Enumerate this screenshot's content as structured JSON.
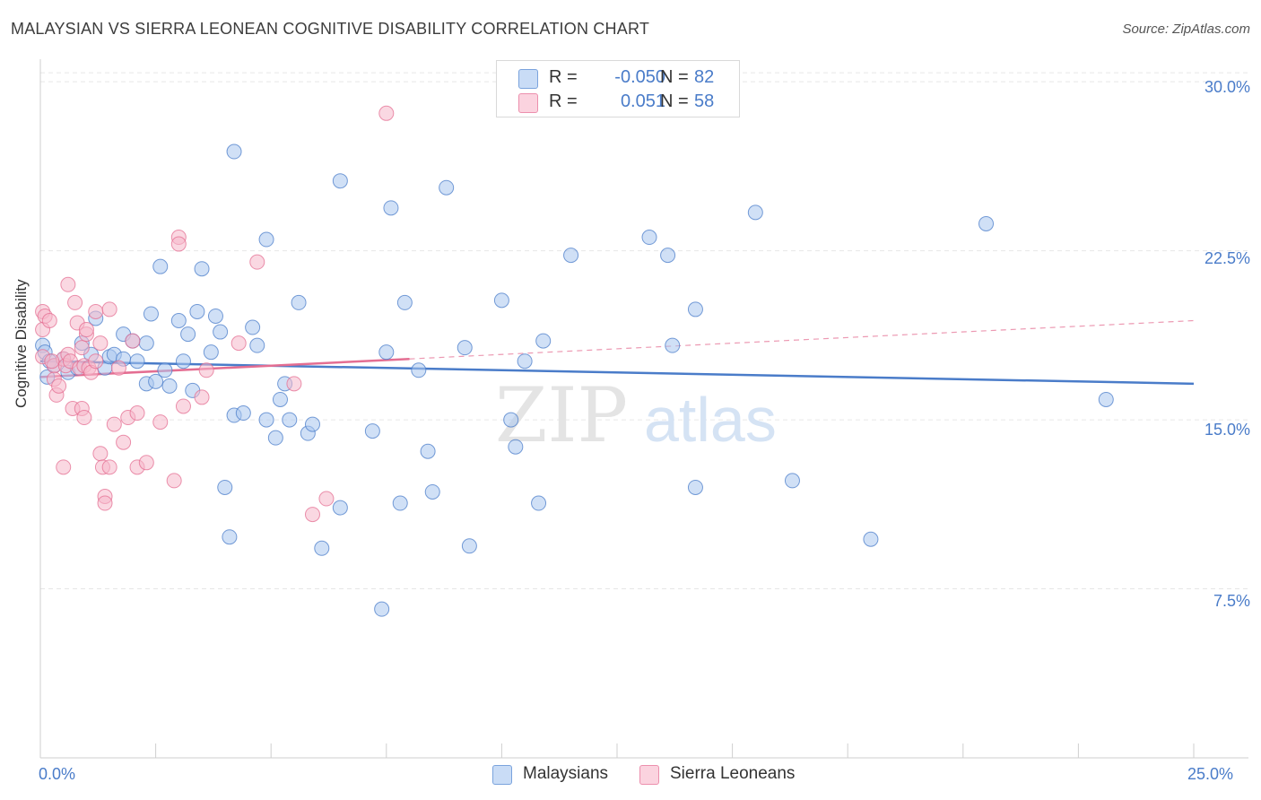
{
  "header": {
    "title": "MALAYSIAN VS SIERRA LEONEAN COGNITIVE DISABILITY CORRELATION CHART",
    "source": "Source: ZipAtlas.com"
  },
  "watermark": "ZIPatlas",
  "stats": [
    {
      "r_label": "R =",
      "r_value": "-0.050",
      "n_label": "N =",
      "n_value": "82",
      "color": "#a9c6ef"
    },
    {
      "r_label": "R =",
      "r_value": "0.051",
      "n_label": "N =",
      "n_value": "58",
      "color": "#f5b8cb"
    }
  ],
  "legend": [
    {
      "label": "Malaysians",
      "color": "#a9c6ef"
    },
    {
      "label": "Sierra Leoneans",
      "color": "#f5b8cb"
    }
  ],
  "chart_data": {
    "type": "scatter",
    "title": "MALAYSIAN VS SIERRA LEONEAN COGNITIVE DISABILITY CORRELATION CHART",
    "xlabel": "",
    "ylabel": "Cognitive Disability",
    "xlim": [
      0,
      25
    ],
    "ylim": [
      0,
      31
    ],
    "x_tick_labels": [
      "0.0%",
      "25.0%"
    ],
    "y_ticks": [
      7.5,
      15.0,
      22.5,
      30.0
    ],
    "y_tick_labels": [
      "7.5%",
      "15.0%",
      "22.5%",
      "30.0%"
    ],
    "grid": true,
    "series": [
      {
        "name": "Malaysians",
        "color": "#4a7cc9",
        "fill": "#a9c6ef",
        "trend": {
          "x0": 0,
          "y0": 17.6,
          "x1": 25,
          "y1": 16.6
        },
        "points": [
          [
            0.05,
            18.3
          ],
          [
            0.1,
            18.0
          ],
          [
            0.2,
            17.6
          ],
          [
            0.3,
            17.4
          ],
          [
            0.5,
            17.7
          ],
          [
            0.6,
            17.1
          ],
          [
            0.8,
            17.3
          ],
          [
            0.9,
            18.4
          ],
          [
            1.1,
            17.9
          ],
          [
            1.2,
            19.5
          ],
          [
            1.4,
            17.3
          ],
          [
            1.5,
            17.8
          ],
          [
            1.6,
            17.9
          ],
          [
            1.8,
            17.7
          ],
          [
            1.8,
            18.8
          ],
          [
            2.0,
            18.5
          ],
          [
            2.1,
            17.6
          ],
          [
            2.3,
            18.4
          ],
          [
            2.3,
            16.6
          ],
          [
            2.4,
            19.7
          ],
          [
            2.5,
            16.7
          ],
          [
            2.6,
            21.8
          ],
          [
            2.7,
            17.2
          ],
          [
            2.8,
            16.5
          ],
          [
            3.0,
            19.4
          ],
          [
            3.1,
            17.6
          ],
          [
            3.2,
            18.8
          ],
          [
            3.3,
            16.3
          ],
          [
            3.4,
            19.8
          ],
          [
            3.5,
            21.7
          ],
          [
            3.7,
            18.0
          ],
          [
            3.8,
            19.6
          ],
          [
            3.9,
            18.9
          ],
          [
            4.0,
            12.0
          ],
          [
            4.1,
            9.8
          ],
          [
            4.2,
            26.9
          ],
          [
            4.2,
            15.2
          ],
          [
            4.4,
            15.3
          ],
          [
            4.6,
            19.1
          ],
          [
            4.7,
            18.3
          ],
          [
            4.9,
            23.0
          ],
          [
            4.9,
            15.0
          ],
          [
            5.1,
            14.2
          ],
          [
            5.2,
            15.9
          ],
          [
            5.3,
            16.6
          ],
          [
            5.4,
            15.0
          ],
          [
            5.6,
            20.2
          ],
          [
            5.8,
            14.4
          ],
          [
            5.9,
            14.8
          ],
          [
            6.1,
            9.3
          ],
          [
            6.5,
            11.1
          ],
          [
            6.5,
            25.6
          ],
          [
            7.2,
            14.5
          ],
          [
            7.4,
            6.6
          ],
          [
            7.5,
            18.0
          ],
          [
            7.6,
            24.4
          ],
          [
            7.8,
            11.3
          ],
          [
            7.9,
            20.2
          ],
          [
            8.2,
            17.2
          ],
          [
            8.4,
            13.6
          ],
          [
            8.5,
            11.8
          ],
          [
            8.8,
            25.3
          ],
          [
            9.2,
            18.2
          ],
          [
            9.3,
            9.4
          ],
          [
            10.0,
            20.3
          ],
          [
            10.2,
            15.0
          ],
          [
            10.3,
            13.8
          ],
          [
            10.5,
            17.6
          ],
          [
            10.8,
            11.3
          ],
          [
            10.9,
            18.5
          ],
          [
            11.5,
            22.3
          ],
          [
            13.2,
            23.1
          ],
          [
            13.6,
            22.3
          ],
          [
            13.7,
            18.3
          ],
          [
            14.2,
            19.9
          ],
          [
            14.2,
            12.0
          ],
          [
            15.5,
            24.2
          ],
          [
            16.3,
            12.3
          ],
          [
            18.0,
            9.7
          ],
          [
            20.5,
            23.7
          ],
          [
            23.1,
            15.9
          ],
          [
            0.15,
            16.9
          ]
        ]
      },
      {
        "name": "Sierra Leoneans",
        "color": "#e46e92",
        "fill": "#f5b8cb",
        "trend": {
          "x0": 0,
          "y0": 16.9,
          "x1": 8,
          "y1": 17.7,
          "dashed_x1": 25,
          "dashed_y1": 19.4
        },
        "points": [
          [
            0.05,
            17.8
          ],
          [
            0.05,
            19.8
          ],
          [
            0.05,
            19.0
          ],
          [
            0.1,
            19.6
          ],
          [
            0.2,
            19.4
          ],
          [
            0.3,
            17.4
          ],
          [
            0.3,
            16.8
          ],
          [
            0.35,
            16.1
          ],
          [
            0.4,
            16.5
          ],
          [
            0.5,
            17.7
          ],
          [
            0.5,
            12.9
          ],
          [
            0.55,
            17.4
          ],
          [
            0.6,
            17.9
          ],
          [
            0.6,
            21.0
          ],
          [
            0.65,
            17.6
          ],
          [
            0.7,
            15.5
          ],
          [
            0.75,
            20.2
          ],
          [
            0.8,
            19.3
          ],
          [
            0.85,
            17.3
          ],
          [
            0.9,
            18.2
          ],
          [
            0.9,
            15.5
          ],
          [
            0.95,
            15.1
          ],
          [
            0.95,
            17.4
          ],
          [
            1.0,
            18.8
          ],
          [
            1.0,
            19.0
          ],
          [
            1.05,
            17.3
          ],
          [
            1.1,
            17.1
          ],
          [
            1.2,
            19.8
          ],
          [
            1.2,
            17.6
          ],
          [
            1.3,
            18.4
          ],
          [
            1.3,
            13.5
          ],
          [
            1.35,
            12.9
          ],
          [
            1.4,
            11.6
          ],
          [
            1.4,
            11.3
          ],
          [
            1.5,
            19.9
          ],
          [
            1.5,
            12.9
          ],
          [
            1.6,
            14.8
          ],
          [
            1.7,
            17.3
          ],
          [
            1.8,
            14.0
          ],
          [
            1.9,
            15.1
          ],
          [
            2.0,
            18.5
          ],
          [
            2.1,
            12.9
          ],
          [
            2.1,
            15.3
          ],
          [
            2.3,
            13.1
          ],
          [
            2.6,
            14.9
          ],
          [
            2.9,
            12.3
          ],
          [
            3.0,
            23.1
          ],
          [
            3.0,
            22.8
          ],
          [
            3.1,
            15.6
          ],
          [
            3.5,
            16.0
          ],
          [
            3.6,
            17.2
          ],
          [
            4.3,
            18.4
          ],
          [
            4.7,
            22.0
          ],
          [
            5.5,
            16.6
          ],
          [
            5.9,
            10.8
          ],
          [
            6.2,
            11.5
          ],
          [
            7.5,
            28.6
          ],
          [
            0.25,
            17.6
          ]
        ]
      }
    ]
  }
}
